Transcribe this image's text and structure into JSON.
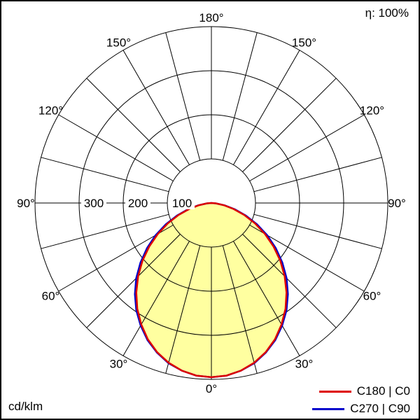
{
  "header": {
    "eta_label": "η: 100%"
  },
  "footer": {
    "unit_label": "cd/klm"
  },
  "legend": [
    {
      "label": "C180 | C0",
      "color": "#dd0000"
    },
    {
      "label": "C270 | C90",
      "color": "#0000cc"
    }
  ],
  "chart_data": {
    "type": "polar",
    "subtype": "photometric-luminous-intensity-distribution",
    "unit": "cd/klm",
    "efficiency": "η: 100%",
    "angle_tick_labels_deg": [
      0,
      30,
      60,
      90,
      120,
      150,
      180
    ],
    "radial_tick_labels": [
      100,
      200,
      300
    ],
    "radial_circles": [
      100,
      200,
      300,
      400
    ],
    "grid_spoke_step_deg": 15,
    "fill_color": "#ffffa0",
    "grid_color": "#000000",
    "angles_deg_from_nadir": [
      0,
      5,
      10,
      15,
      20,
      25,
      30,
      35,
      40,
      45,
      50,
      55,
      60,
      65,
      70,
      75,
      80,
      85,
      90
    ],
    "series": [
      {
        "name": "C180 | C0",
        "color": "#dd0000",
        "values": [
          395,
          393,
          386,
          375,
          360,
          341,
          318,
          293,
          265,
          235,
          204,
          172,
          140,
          109,
          79,
          52,
          29,
          10,
          0
        ]
      },
      {
        "name": "C270 | C90",
        "color": "#0000cc",
        "values": [
          395,
          393,
          386,
          376,
          361,
          343,
          321,
          297,
          270,
          241,
          210,
          178,
          146,
          114,
          83,
          55,
          31,
          11,
          0
        ]
      }
    ]
  }
}
